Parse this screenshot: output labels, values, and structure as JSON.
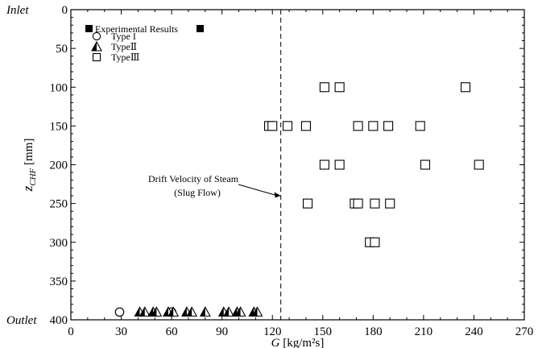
{
  "chart_data": {
    "type": "scatter",
    "x_axis": {
      "label_main": "G",
      "label_unit": "[kg/m²s]",
      "min": 0,
      "max": 270,
      "ticks": [
        0,
        30,
        60,
        90,
        120,
        150,
        180,
        210,
        240,
        270
      ]
    },
    "y_axis": {
      "label_main": "z",
      "label_sub": "CHF",
      "label_unit": "[mm]",
      "min": 0,
      "max": 400,
      "inverted": true,
      "ticks": [
        0,
        50,
        100,
        150,
        200,
        250,
        300,
        350,
        400
      ],
      "top_label": "Inlet",
      "bottom_label": "Outlet"
    },
    "legend": {
      "header": "Experimental Results",
      "placement": "top-left",
      "items": [
        {
          "name": "Type I",
          "marker": "circle"
        },
        {
          "name": "TypeⅡ",
          "marker": "half-triangle"
        },
        {
          "name": "TypeⅢ",
          "marker": "square"
        }
      ]
    },
    "reference_line": {
      "x": 125,
      "style": "dashed",
      "annotation_line1": "Drift Velocity of Steam",
      "annotation_line2": "(Slug Flow)"
    },
    "series": [
      {
        "name": "Type I",
        "marker": "circle",
        "x": [
          29,
          60
        ],
        "y": [
          390,
          390
        ]
      },
      {
        "name": "TypeⅡ",
        "marker": "half-triangle",
        "x": [
          41,
          44,
          49,
          51,
          58,
          61,
          69,
          72,
          80,
          91,
          94,
          99,
          101,
          109,
          111
        ],
        "y": [
          390,
          390,
          390,
          390,
          390,
          390,
          390,
          390,
          390,
          390,
          390,
          390,
          390,
          390,
          390
        ]
      },
      {
        "name": "TypeⅢ",
        "marker": "square",
        "x": [
          151,
          160,
          235,
          118,
          120,
          129,
          140,
          171,
          180,
          189,
          208,
          151,
          160,
          211,
          243,
          141,
          169,
          171,
          181,
          190,
          178,
          181
        ],
        "y": [
          100,
          100,
          100,
          150,
          150,
          150,
          150,
          150,
          150,
          150,
          150,
          200,
          200,
          200,
          200,
          250,
          250,
          250,
          250,
          250,
          300,
          300
        ]
      }
    ]
  }
}
